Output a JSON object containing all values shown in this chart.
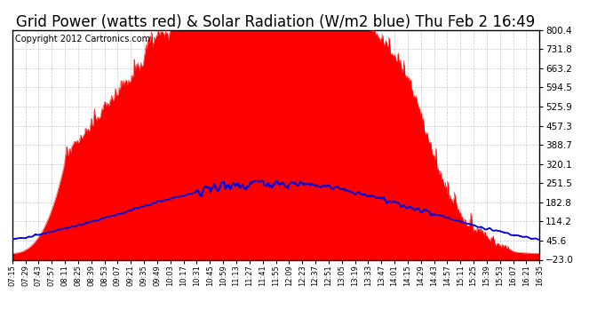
{
  "title": "Grid Power (watts red) & Solar Radiation (W/m2 blue) Thu Feb 2 16:49",
  "copyright": "Copyright 2012 Cartronics.com",
  "ymin": -23.0,
  "ymax": 800.4,
  "yticks": [
    800.4,
    731.8,
    663.2,
    594.5,
    525.9,
    457.3,
    388.7,
    320.1,
    251.5,
    182.8,
    114.2,
    45.6,
    -23.0
  ],
  "xtick_labels": [
    "07:15",
    "07:29",
    "07:43",
    "07:57",
    "08:11",
    "08:25",
    "08:39",
    "08:53",
    "09:07",
    "09:21",
    "09:35",
    "09:49",
    "10:03",
    "10:17",
    "10:31",
    "10:45",
    "10:59",
    "11:13",
    "11:27",
    "11:41",
    "11:55",
    "12:09",
    "12:23",
    "12:37",
    "12:51",
    "13:05",
    "13:19",
    "13:33",
    "13:47",
    "14:01",
    "14:15",
    "14:29",
    "14:43",
    "14:57",
    "15:11",
    "15:25",
    "15:39",
    "15:53",
    "16:07",
    "16:21",
    "16:35"
  ],
  "bg_color": "#ffffff",
  "grid_color": "#bbbbbb",
  "red_color": "#ff0000",
  "blue_color": "#0000dd",
  "title_fontsize": 12,
  "copyright_fontsize": 7
}
